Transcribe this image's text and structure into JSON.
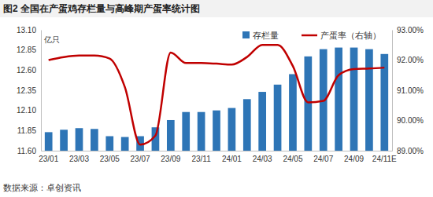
{
  "chart_data": {
    "type": "bar",
    "title": "图2 全国在产蛋鸡存栏量与高峰期产蛋率统计图",
    "y_label": "亿只",
    "source": "数据来源：卓创资讯",
    "categories": [
      "23/01",
      null,
      "23/03",
      null,
      "23/05",
      null,
      "23/07",
      null,
      "23/09",
      null,
      "23/11",
      null,
      "24/01",
      null,
      "24/03",
      null,
      "24/05",
      null,
      "24/07",
      null,
      "24/09",
      null,
      "24/11E"
    ],
    "series": [
      {
        "name": "存栏量",
        "type": "bar",
        "color": "#2e75b6",
        "values": [
          11.83,
          11.86,
          11.88,
          11.87,
          11.78,
          11.77,
          11.78,
          11.89,
          11.98,
          12.08,
          12.08,
          12.1,
          12.13,
          12.24,
          12.33,
          12.42,
          12.55,
          12.77,
          12.86,
          12.88,
          12.88,
          12.86,
          12.8
        ]
      },
      {
        "name": "产蛋率（右轴）",
        "type": "line",
        "axis": "y2",
        "color": "#c00000",
        "values": [
          92.0,
          92.1,
          92.15,
          92.15,
          92.05,
          91.1,
          89.2,
          89.5,
          92.25,
          91.9,
          91.9,
          91.88,
          91.85,
          92.1,
          92.5,
          92.5,
          91.8,
          90.6,
          90.65,
          91.5,
          91.7,
          91.72,
          91.75
        ]
      }
    ],
    "ylim": [
      11.6,
      13.1
    ],
    "yticks": [
      {
        "value": 11.6,
        "label": "11.60"
      },
      {
        "value": 11.85,
        "label": "11.85"
      },
      {
        "value": 12.1,
        "label": "12.10"
      },
      {
        "value": 12.35,
        "label": "12.35"
      },
      {
        "value": 12.6,
        "label": "12.60"
      },
      {
        "value": 12.85,
        "label": "12.85"
      },
      {
        "value": 13.1,
        "label": "13.10"
      }
    ],
    "y2lim": [
      89,
      93
    ],
    "y2ticks": [
      {
        "value": 89,
        "label": "89.00%"
      },
      {
        "value": 90,
        "label": "90.00%"
      },
      {
        "value": 91,
        "label": "91.00%"
      },
      {
        "value": 92,
        "label": "92.00%"
      },
      {
        "value": 93,
        "label": "93.00%"
      }
    ],
    "grid": false,
    "legend": "top-right"
  }
}
